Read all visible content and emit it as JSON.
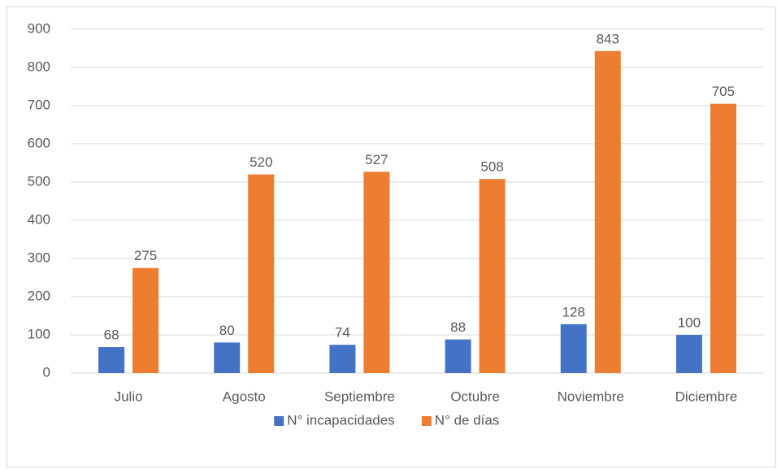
{
  "chart_data": {
    "type": "bar",
    "categories": [
      "Julio",
      "Agosto",
      "Septiembre",
      "Octubre",
      "Noviembre",
      "Diciembre"
    ],
    "series": [
      {
        "name": "N° incapacidades",
        "color": "#4472c4",
        "values": [
          68,
          80,
          74,
          88,
          128,
          100
        ]
      },
      {
        "name": "N° de días",
        "color": "#ed7d31",
        "values": [
          275,
          520,
          527,
          508,
          843,
          705
        ]
      }
    ],
    "ylim": [
      0,
      900
    ],
    "yticks": [
      0,
      100,
      200,
      300,
      400,
      500,
      600,
      700,
      800,
      900
    ],
    "grid": true,
    "legend": "bottom"
  }
}
